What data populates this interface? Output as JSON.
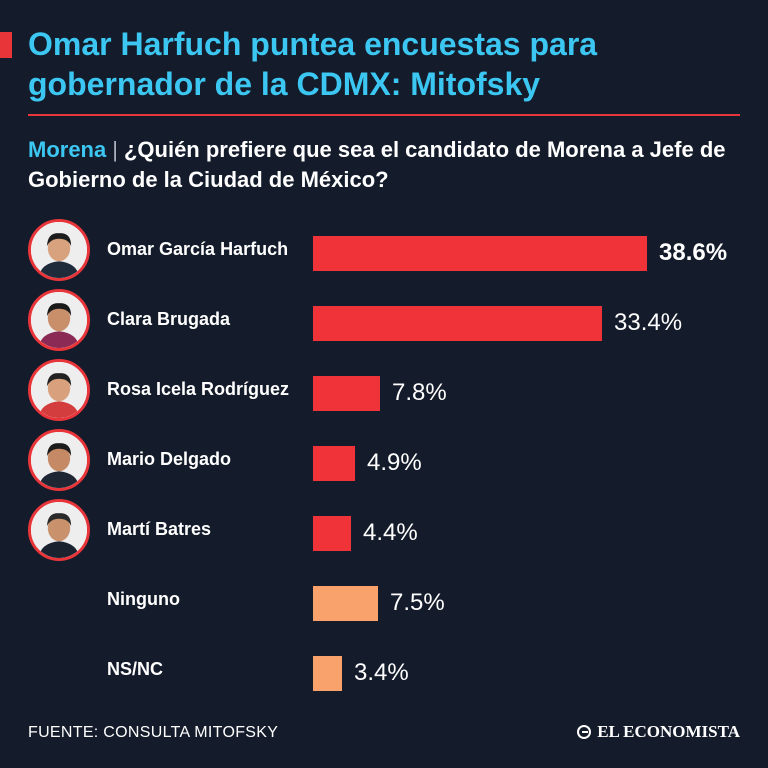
{
  "header": {
    "title": "Omar Harfuch puntea encuestas para gobernador de la CDMX: Mitofsky",
    "subtitle_tag": "Morena",
    "subtitle_separator": "|",
    "subtitle_text": "¿Quién prefiere que sea el candidato de Morena a Jefe de Gobierno de la Ciudad de México?"
  },
  "chart_data": {
    "type": "bar",
    "orientation": "horizontal",
    "categories": [
      "Omar García Harfuch",
      "Clara Brugada",
      "Rosa Icela Rodríguez",
      "Mario Delgado",
      "Martí Batres",
      "Ninguno",
      "NS/NC"
    ],
    "values": [
      38.6,
      33.4,
      7.8,
      4.9,
      4.4,
      7.5,
      3.4
    ],
    "value_labels": [
      "38.6%",
      "33.4%",
      "7.8%",
      "4.9%",
      "4.4%",
      "7.5%",
      "3.4%"
    ],
    "xlim": [
      0,
      40
    ],
    "bar_colors": [
      "#ef3339",
      "#ef3339",
      "#ef3339",
      "#ef3339",
      "#ef3339",
      "#f9a26c",
      "#f9a26c"
    ],
    "highlight_index": 0,
    "has_avatar": [
      true,
      true,
      true,
      true,
      true,
      false,
      false
    ],
    "grid": false,
    "legend": "none"
  },
  "footer": {
    "source": "FUENTE: CONSULTA MITOFSKY",
    "brand": "EL ECONOMISTA"
  },
  "colors": {
    "background": "#141b2a",
    "title": "#3cc7f2",
    "accent": "#e8353a",
    "bar_primary": "#ef3339",
    "bar_secondary": "#f9a26c"
  }
}
